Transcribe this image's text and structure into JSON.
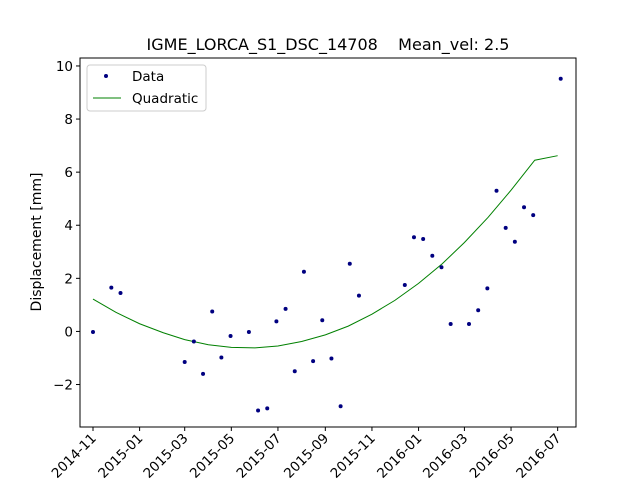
{
  "chart_data": {
    "type": "scatter",
    "title": "IGME_LORCA_S1_DSC_14708    Mean_vel: 2.5",
    "xlabel": "",
    "ylabel": "Displacement [mm]",
    "x_axis_type": "date",
    "xlim": [
      "2014-10-15",
      "2016-07-25"
    ],
    "ylim": [
      -3.6,
      10.3
    ],
    "x_ticks": [
      "2014-11-01",
      "2015-01-01",
      "2015-03-01",
      "2015-05-01",
      "2015-07-01",
      "2015-09-01",
      "2015-11-01",
      "2016-01-01",
      "2016-03-01",
      "2016-05-01",
      "2016-07-01"
    ],
    "x_tick_labels": [
      "2014-11",
      "2015-01",
      "2015-03",
      "2015-05",
      "2015-07",
      "2015-09",
      "2015-11",
      "2016-01",
      "2016-03",
      "2016-05",
      "2016-07"
    ],
    "y_ticks": [
      -2,
      0,
      2,
      4,
      6,
      8,
      10
    ],
    "y_tick_labels": [
      "−2",
      "0",
      "2",
      "4",
      "6",
      "8",
      "10"
    ],
    "grid": false,
    "legend": {
      "position": "top-left",
      "entries": [
        "Data",
        "Quadratic"
      ]
    },
    "series": [
      {
        "name": "Data",
        "kind": "points",
        "color": "#000080",
        "points": [
          {
            "x": "2014-11-01",
            "y": -0.02
          },
          {
            "x": "2014-11-25",
            "y": 1.65
          },
          {
            "x": "2014-12-07",
            "y": 1.45
          },
          {
            "x": "2015-03-01",
            "y": -1.15
          },
          {
            "x": "2015-03-13",
            "y": -0.38
          },
          {
            "x": "2015-03-25",
            "y": -1.6
          },
          {
            "x": "2015-04-06",
            "y": 0.75
          },
          {
            "x": "2015-04-18",
            "y": -0.98
          },
          {
            "x": "2015-04-30",
            "y": -0.17
          },
          {
            "x": "2015-05-24",
            "y": -0.02
          },
          {
            "x": "2015-06-05",
            "y": -2.98
          },
          {
            "x": "2015-06-17",
            "y": -2.9
          },
          {
            "x": "2015-06-29",
            "y": 0.38
          },
          {
            "x": "2015-07-11",
            "y": 0.85
          },
          {
            "x": "2015-07-23",
            "y": -1.5
          },
          {
            "x": "2015-08-04",
            "y": 2.25
          },
          {
            "x": "2015-08-16",
            "y": -1.12
          },
          {
            "x": "2015-08-28",
            "y": 0.42
          },
          {
            "x": "2015-09-09",
            "y": -1.02
          },
          {
            "x": "2015-09-21",
            "y": -2.82
          },
          {
            "x": "2015-10-03",
            "y": 2.55
          },
          {
            "x": "2015-10-15",
            "y": 1.35
          },
          {
            "x": "2015-12-14",
            "y": 1.75
          },
          {
            "x": "2015-12-26",
            "y": 3.55
          },
          {
            "x": "2016-01-07",
            "y": 3.48
          },
          {
            "x": "2016-01-19",
            "y": 2.85
          },
          {
            "x": "2016-01-31",
            "y": 2.42
          },
          {
            "x": "2016-02-12",
            "y": 0.28
          },
          {
            "x": "2016-03-07",
            "y": 0.28
          },
          {
            "x": "2016-03-19",
            "y": 0.8
          },
          {
            "x": "2016-03-31",
            "y": 1.62
          },
          {
            "x": "2016-04-12",
            "y": 5.3
          },
          {
            "x": "2016-04-24",
            "y": 3.9
          },
          {
            "x": "2016-05-06",
            "y": 3.38
          },
          {
            "x": "2016-05-18",
            "y": 4.68
          },
          {
            "x": "2016-05-30",
            "y": 4.38
          },
          {
            "x": "2016-07-05",
            "y": 9.52
          }
        ]
      },
      {
        "name": "Quadratic",
        "kind": "curve",
        "color": "#008000",
        "points": [
          {
            "x": "2014-11-01",
            "y": 1.22
          },
          {
            "x": "2014-12-01",
            "y": 0.72
          },
          {
            "x": "2015-01-01",
            "y": 0.29
          },
          {
            "x": "2015-02-01",
            "y": -0.05
          },
          {
            "x": "2015-03-01",
            "y": -0.31
          },
          {
            "x": "2015-04-01",
            "y": -0.5
          },
          {
            "x": "2015-05-01",
            "y": -0.6
          },
          {
            "x": "2015-06-01",
            "y": -0.62
          },
          {
            "x": "2015-07-01",
            "y": -0.55
          },
          {
            "x": "2015-08-01",
            "y": -0.38
          },
          {
            "x": "2015-09-01",
            "y": -0.13
          },
          {
            "x": "2015-10-01",
            "y": 0.2
          },
          {
            "x": "2015-11-01",
            "y": 0.65
          },
          {
            "x": "2015-12-01",
            "y": 1.17
          },
          {
            "x": "2016-01-01",
            "y": 1.81
          },
          {
            "x": "2016-02-01",
            "y": 2.55
          },
          {
            "x": "2016-03-01",
            "y": 3.35
          },
          {
            "x": "2016-04-01",
            "y": 4.3
          },
          {
            "x": "2016-05-01",
            "y": 5.32
          },
          {
            "x": "2016-06-01",
            "y": 6.45
          },
          {
            "x": "2016-07-01",
            "y": 6.62
          }
        ]
      }
    ]
  }
}
